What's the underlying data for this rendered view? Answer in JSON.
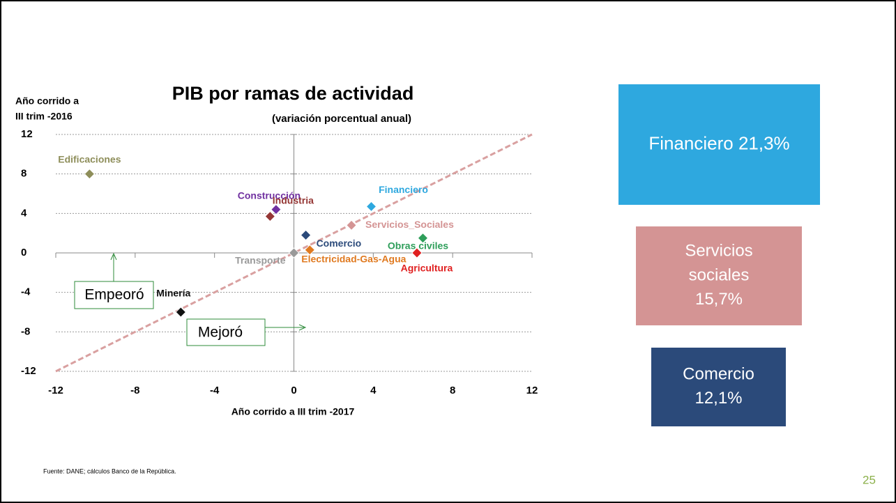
{
  "chart_data": {
    "type": "scatter",
    "title": "PIB por ramas de actividad",
    "subtitle": "(variación porcentual anual)",
    "ylabel": [
      "Año corrido a",
      "III trim -2016"
    ],
    "xlabel": "Año corrido a III trim -2017",
    "xlim": [
      -12,
      12
    ],
    "xticks": [
      -12,
      -8,
      -4,
      0,
      4,
      8,
      12
    ],
    "ylim": [
      -12,
      12
    ],
    "yticks": [
      -12,
      -8,
      -4,
      0,
      4,
      8,
      12
    ],
    "grid": true,
    "series": [
      {
        "name": "Transporte",
        "color": "#9a9a9a",
        "x": [
          0
        ],
        "values": [
          0
        ]
      },
      {
        "name": "Edificaciones",
        "color": "#8e8e5a",
        "x": [
          -10.3
        ],
        "values": [
          8
        ]
      },
      {
        "name": "Construcción",
        "color": "#7030a0",
        "x": [
          -0.9
        ],
        "values": [
          4.4
        ]
      },
      {
        "name": "Industria",
        "color": "#953735",
        "x": [
          -1.2
        ],
        "values": [
          3.7
        ]
      },
      {
        "name": "Financiero",
        "color": "#2ea8df",
        "x": [
          3.9
        ],
        "values": [
          4.7
        ]
      },
      {
        "name": "Servicios_Sociales",
        "color": "#d49494",
        "x": [
          2.9
        ],
        "values": [
          2.8
        ]
      },
      {
        "name": "Comercio",
        "color": "#2b4a7a",
        "x": [
          0.6
        ],
        "values": [
          1.8
        ]
      },
      {
        "name": "Obras civiles",
        "color": "#2e9e5a",
        "x": [
          6.5
        ],
        "values": [
          1.5
        ]
      },
      {
        "name": "Agricultura",
        "color": "#e02020",
        "x": [
          6.2
        ],
        "values": [
          0
        ]
      },
      {
        "name": "Electricidad-Gas-Agua",
        "color": "#e07a20",
        "x": [
          0.8
        ],
        "values": [
          0.3
        ]
      },
      {
        "name": "Minería",
        "color": "#111111",
        "x": [
          -5.7
        ],
        "values": [
          -6
        ]
      }
    ],
    "annotations": [
      "Empeoró",
      "Mejoró"
    ]
  },
  "boxes": [
    {
      "lines": [
        "Financiero 21,3%"
      ],
      "color": "#2ea8df"
    },
    {
      "lines": [
        "Servicios",
        "sociales",
        "15,7%"
      ],
      "color": "#d49494"
    },
    {
      "lines": [
        "Comercio",
        "12,1%"
      ],
      "color": "#2b4a7a"
    }
  ],
  "source": "Fuente: DANE; cálculos Banco de la República.",
  "page_number": "25"
}
